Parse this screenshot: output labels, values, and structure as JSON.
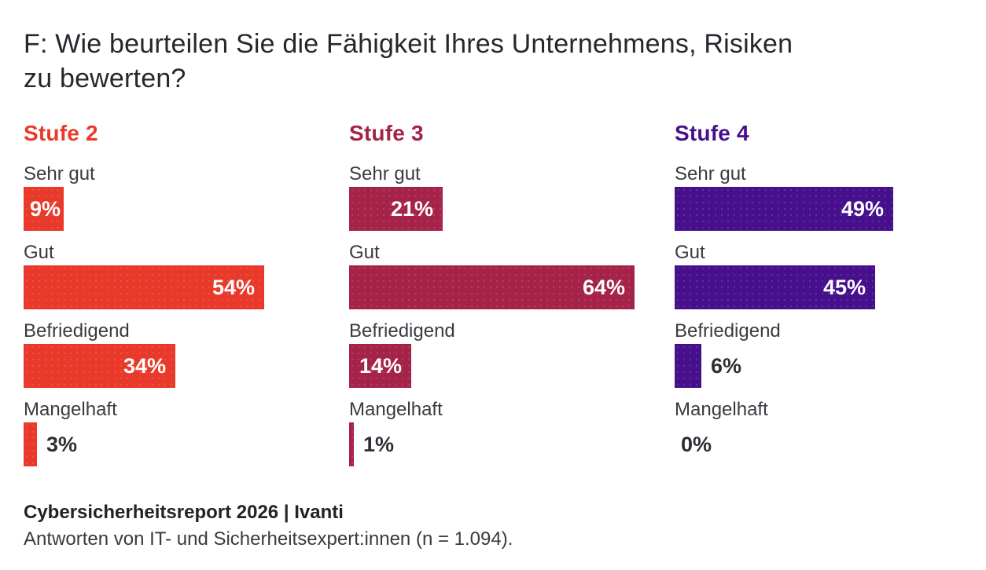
{
  "title_lines": [
    "F: Wie beurteilen Sie die Fähigkeit Ihres Unternehmens, Risiken",
    "zu bewerten?"
  ],
  "footer": {
    "source": "Cybersicherheitsreport 2026 | Ivanti",
    "note": "Antworten von IT- und Sicherheitsexpert:innen (n = 1.094)."
  },
  "chart_data": {
    "type": "bar",
    "orientation": "horizontal",
    "title": "F: Wie beurteilen Sie die Fähigkeit Ihres Unternehmens, Risiken zu bewerten?",
    "categories": [
      "Sehr gut",
      "Gut",
      "Befriedigend",
      "Mangelhaft"
    ],
    "series": [
      {
        "name": "Stufe 2",
        "color": "#E8392B",
        "values": [
          9,
          54,
          34,
          3
        ]
      },
      {
        "name": "Stufe 3",
        "color": "#A52349",
        "values": [
          21,
          64,
          14,
          1
        ]
      },
      {
        "name": "Stufe 4",
        "color": "#46108C",
        "values": [
          49,
          45,
          6,
          0
        ]
      }
    ],
    "value_suffix": "%",
    "xlim": [
      0,
      70
    ],
    "grid": false,
    "legend_position": "column-headers"
  }
}
